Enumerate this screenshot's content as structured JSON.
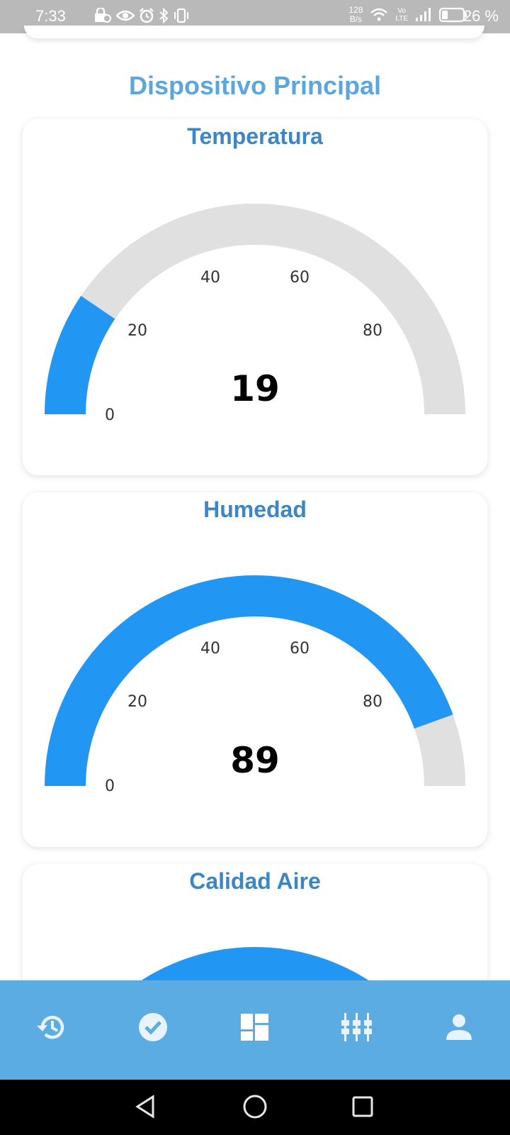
{
  "status_bar": {
    "time": "7:33",
    "net_speed_value": "128",
    "net_speed_unit": "B/s",
    "volte_top": "Vo",
    "volte_bottom": "LTE",
    "battery": "26 %"
  },
  "section_title": "Dispositivo Principal",
  "gauges": [
    {
      "title": "Temperatura",
      "value": "19",
      "value_num": 19,
      "min": 0,
      "max": 100,
      "ticks": [
        "0",
        "20",
        "40",
        "60",
        "80"
      ]
    },
    {
      "title": "Humedad",
      "value": "89",
      "value_num": 89,
      "min": 0,
      "max": 100,
      "ticks": [
        "0",
        "20",
        "40",
        "60",
        "80"
      ]
    },
    {
      "title": "Calidad Aire"
    }
  ],
  "colors": {
    "gauge_fill": "#2196f3",
    "gauge_track": "#e0e0e0",
    "title_color": "#3d86c6",
    "section_title_color": "#5aa6dd",
    "nav_bg": "#5aace2"
  },
  "bottom_nav": {
    "items": [
      "history-icon",
      "check-circle-icon",
      "dashboard-icon",
      "devices-icon",
      "person-icon"
    ]
  },
  "system_nav": {
    "items": [
      "back-icon",
      "home-icon",
      "recents-icon"
    ]
  }
}
